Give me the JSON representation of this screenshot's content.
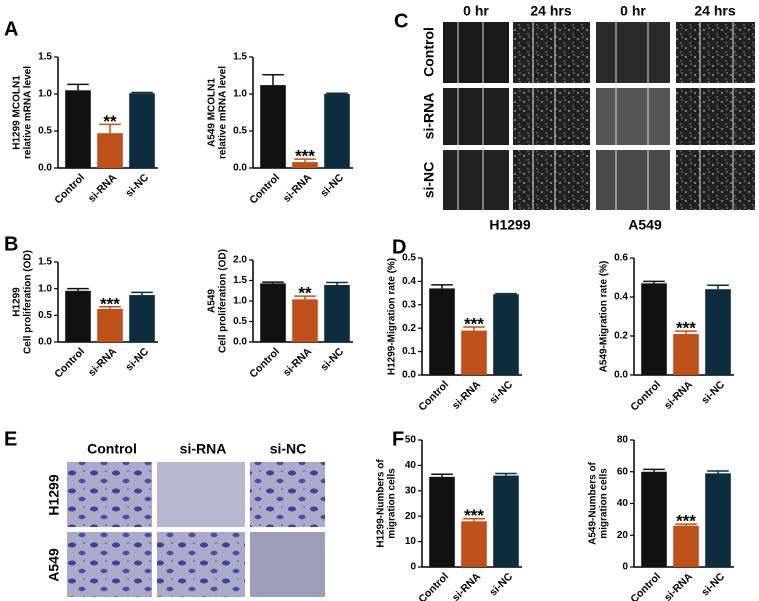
{
  "panel_labels": [
    "A",
    "B",
    "C",
    "D",
    "E",
    "F"
  ],
  "scratch": {
    "columns": [
      "0 hr",
      "24 hrs",
      "0 hr",
      "24 hrs"
    ],
    "rows": [
      "Control",
      "si-RNA",
      "si-NC"
    ],
    "cells": [
      "H1299",
      "A549"
    ]
  },
  "transwell": {
    "columns": [
      "Control",
      "si-RNA",
      "si-NC"
    ],
    "rows": [
      "H1299",
      "A549"
    ]
  },
  "chart_data": [
    {
      "type": "bar",
      "ylabel": [
        "H1299 MCOLN1",
        "relative mRNA level"
      ],
      "categories": [
        "Control",
        "si-RNA",
        "si-NC"
      ],
      "values": [
        1.05,
        0.47,
        1.01
      ],
      "errors": [
        0.08,
        0.12,
        0.01
      ],
      "significance": [
        null,
        "**",
        null
      ],
      "colors": [
        "#111111",
        "#c0501a",
        "#0d2d3f"
      ],
      "ylim": [
        0,
        1.5
      ],
      "yticks": [
        {
          "value": 0,
          "label": "0.0"
        },
        0.5,
        {
          "value": 1,
          "label": "1.0"
        },
        1.5
      ]
    },
    {
      "type": "bar",
      "ylabel": [
        "A549 MCOLN1",
        "relative mRNA level"
      ],
      "categories": [
        "Control",
        "si-RNA",
        "si-NC"
      ],
      "values": [
        1.12,
        0.08,
        1.0
      ],
      "errors": [
        0.14,
        0.04,
        0.01
      ],
      "significance": [
        null,
        "***",
        null
      ],
      "colors": [
        "#111111",
        "#c0501a",
        "#0d2d3f"
      ],
      "ylim": [
        0,
        1.5
      ],
      "yticks": [
        {
          "value": 0,
          "label": "0.0"
        },
        0.5,
        {
          "value": 1,
          "label": "1.0"
        },
        1.5
      ]
    },
    {
      "type": "bar",
      "ylabel": [
        "H1299",
        "Cell proliferation (OD)"
      ],
      "categories": [
        "Control",
        "si-RNA",
        "si-NC"
      ],
      "values": [
        0.96,
        0.62,
        0.88
      ],
      "errors": [
        0.04,
        0.04,
        0.05
      ],
      "significance": [
        null,
        "***",
        null
      ],
      "colors": [
        "#111111",
        "#c0501a",
        "#0d2d3f"
      ],
      "ylim": [
        0,
        1.5
      ],
      "yticks": [
        {
          "value": 0,
          "label": "0.0"
        },
        0.5,
        {
          "value": 1,
          "label": "1.0"
        },
        1.5
      ]
    },
    {
      "type": "bar",
      "ylabel": [
        "A549",
        "Cell proliferation (OD)"
      ],
      "categories": [
        "Control",
        "si-RNA",
        "si-NC"
      ],
      "values": [
        1.43,
        1.04,
        1.39
      ],
      "errors": [
        0.03,
        0.08,
        0.06
      ],
      "significance": [
        null,
        "**",
        null
      ],
      "colors": [
        "#111111",
        "#c0501a",
        "#0d2d3f"
      ],
      "ylim": [
        0,
        2
      ],
      "yticks": [
        {
          "value": 0,
          "label": "0.0"
        },
        0.5,
        {
          "value": 1,
          "label": "1.0"
        },
        1.5,
        {
          "value": 2,
          "label": "2.0"
        }
      ]
    },
    {
      "type": "bar",
      "ylabel": [
        "H1299-Migration rate (%)"
      ],
      "categories": [
        "Control",
        "si-RNA",
        "si-NC"
      ],
      "values": [
        0.37,
        0.19,
        0.345
      ],
      "errors": [
        0.015,
        0.015,
        0.003
      ],
      "significance": [
        null,
        "***",
        null
      ],
      "colors": [
        "#111111",
        "#c0501a",
        "#0d2d3f"
      ],
      "ylim": [
        0,
        0.5
      ],
      "yticks": [
        {
          "value": 0,
          "label": "0.0"
        },
        0.1,
        0.2,
        0.3,
        0.4,
        0.5
      ]
    },
    {
      "type": "bar",
      "ylabel": [
        "A549-Migration rate (%)"
      ],
      "categories": [
        "Control",
        "si-RNA",
        "si-NC"
      ],
      "values": [
        0.47,
        0.21,
        0.44
      ],
      "errors": [
        0.01,
        0.015,
        0.02
      ],
      "significance": [
        null,
        "***",
        null
      ],
      "colors": [
        "#111111",
        "#c0501a",
        "#0d2d3f"
      ],
      "ylim": [
        0,
        0.6
      ],
      "yticks": [
        {
          "value": 0,
          "label": "0.0"
        },
        0.2,
        0.4,
        0.6
      ]
    },
    {
      "type": "bar",
      "ylabel": [
        "H1299-Numbers of",
        "migration cells"
      ],
      "categories": [
        "Control",
        "si-RNA",
        "si-NC"
      ],
      "values": [
        35.5,
        18,
        36
      ],
      "errors": [
        1,
        1,
        0.8
      ],
      "significance": [
        null,
        "***",
        null
      ],
      "colors": [
        "#111111",
        "#c0501a",
        "#0d2d3f"
      ],
      "ylim": [
        0,
        50
      ],
      "yticks": [
        0,
        10,
        20,
        30,
        40,
        50
      ]
    },
    {
      "type": "bar",
      "ylabel": [
        "A549-Numbers of",
        "migration cells"
      ],
      "categories": [
        "Control",
        "si-RNA",
        "si-NC"
      ],
      "values": [
        60,
        26,
        59
      ],
      "errors": [
        1.5,
        1,
        1.5
      ],
      "significance": [
        null,
        "***",
        null
      ],
      "colors": [
        "#111111",
        "#c0501a",
        "#0d2d3f"
      ],
      "ylim": [
        0,
        80
      ],
      "yticks": [
        0,
        20,
        40,
        60,
        80
      ]
    }
  ]
}
